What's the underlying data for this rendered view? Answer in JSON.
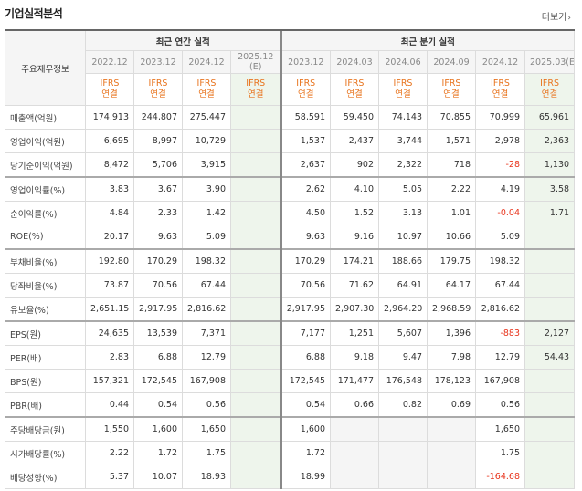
{
  "header": {
    "title": "기업실적분석",
    "more_label": "더보기",
    "more_icon": "chevron-right-icon"
  },
  "table": {
    "corner_label": "주요재무정보",
    "annual_group": "최근 연간 실적",
    "quarter_group": "최근 분기 실적",
    "annual_periods": [
      "2022.12",
      "2023.12",
      "2024.12",
      "2025.12",
      "(E)"
    ],
    "quarter_periods": [
      "2023.12",
      "2024.03",
      "2024.06",
      "2024.09",
      "2024.12",
      "2025.03",
      "(E)"
    ],
    "ifrs": {
      "a": "IFRS",
      "b": "연결"
    },
    "rows": [
      {
        "label": "매출액(억원)",
        "a": [
          "174,913",
          "244,807",
          "275,447",
          ""
        ],
        "q": [
          "58,591",
          "59,450",
          "74,143",
          "70,855",
          "70,999",
          "65,961"
        ]
      },
      {
        "label": "영업이익(억원)",
        "a": [
          "6,695",
          "8,997",
          "10,729",
          ""
        ],
        "q": [
          "1,537",
          "2,437",
          "3,744",
          "1,571",
          "2,978",
          "2,363"
        ]
      },
      {
        "label": "당기순이익(억원)",
        "a": [
          "8,472",
          "5,706",
          "3,915",
          ""
        ],
        "q": [
          "2,637",
          "902",
          "2,322",
          "718",
          "-28",
          "1,130"
        ]
      },
      {
        "label": "영업이익률(%)",
        "a": [
          "3.83",
          "3.67",
          "3.90",
          ""
        ],
        "q": [
          "2.62",
          "4.10",
          "5.05",
          "2.22",
          "4.19",
          "3.58"
        ]
      },
      {
        "label": "순이익률(%)",
        "a": [
          "4.84",
          "2.33",
          "1.42",
          ""
        ],
        "q": [
          "4.50",
          "1.52",
          "3.13",
          "1.01",
          "-0.04",
          "1.71"
        ]
      },
      {
        "label": "ROE(%)",
        "a": [
          "20.17",
          "9.63",
          "5.09",
          ""
        ],
        "q": [
          "9.63",
          "9.16",
          "10.97",
          "10.66",
          "5.09",
          ""
        ]
      },
      {
        "label": "부채비율(%)",
        "a": [
          "192.80",
          "170.29",
          "198.32",
          ""
        ],
        "q": [
          "170.29",
          "174.21",
          "188.66",
          "179.75",
          "198.32",
          ""
        ]
      },
      {
        "label": "당좌비율(%)",
        "a": [
          "73.87",
          "70.56",
          "67.44",
          ""
        ],
        "q": [
          "70.56",
          "71.62",
          "64.91",
          "64.17",
          "67.44",
          ""
        ]
      },
      {
        "label": "유보율(%)",
        "a": [
          "2,651.15",
          "2,917.95",
          "2,816.62",
          ""
        ],
        "q": [
          "2,917.95",
          "2,907.30",
          "2,964.20",
          "2,968.59",
          "2,816.62",
          ""
        ]
      },
      {
        "label": "EPS(원)",
        "a": [
          "24,635",
          "13,539",
          "7,371",
          ""
        ],
        "q": [
          "7,177",
          "1,251",
          "5,607",
          "1,396",
          "-883",
          "2,127"
        ]
      },
      {
        "label": "PER(배)",
        "a": [
          "2.83",
          "6.88",
          "12.79",
          ""
        ],
        "q": [
          "6.88",
          "9.18",
          "9.47",
          "7.98",
          "12.79",
          "54.43"
        ]
      },
      {
        "label": "BPS(원)",
        "a": [
          "157,321",
          "172,545",
          "167,908",
          ""
        ],
        "q": [
          "172,545",
          "171,477",
          "176,548",
          "178,123",
          "167,908",
          ""
        ]
      },
      {
        "label": "PBR(배)",
        "a": [
          "0.44",
          "0.54",
          "0.56",
          ""
        ],
        "q": [
          "0.54",
          "0.66",
          "0.82",
          "0.69",
          "0.56",
          ""
        ]
      },
      {
        "label": "주당배당금(원)",
        "a": [
          "1,550",
          "1,600",
          "1,650",
          ""
        ],
        "q": [
          "1,600",
          "",
          "",
          "",
          "1,650",
          ""
        ]
      },
      {
        "label": "시가배당률(%)",
        "a": [
          "2.22",
          "1.72",
          "1.75",
          ""
        ],
        "q": [
          "1.72",
          "",
          "",
          "",
          "1.75",
          ""
        ]
      },
      {
        "label": "배당성향(%)",
        "a": [
          "5.37",
          "10.07",
          "18.93",
          ""
        ],
        "q": [
          "18.99",
          "",
          "",
          "",
          "-164.68",
          ""
        ]
      }
    ],
    "highlight_color": "#eef5ec",
    "ifrs_color": "#e8741e",
    "negative_color": "#e8341c"
  }
}
